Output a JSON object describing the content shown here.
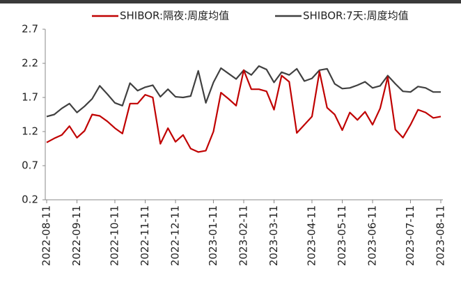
{
  "chart_data": {
    "type": "line",
    "categories": [
      "2022-08-11",
      null,
      null,
      null,
      "2022-09-11",
      null,
      null,
      null,
      null,
      "2022-10-11",
      null,
      null,
      null,
      "2022-11-11",
      null,
      null,
      null,
      "2022-12-11",
      null,
      null,
      null,
      null,
      "2023-01-11",
      null,
      null,
      null,
      "2023-02-11",
      null,
      null,
      null,
      "2023-03-11",
      null,
      null,
      null,
      null,
      "2023-04-11",
      null,
      null,
      null,
      "2023-05-11",
      null,
      null,
      null,
      "2023-06-11",
      null,
      null,
      null,
      null,
      "2023-07-11",
      null,
      null,
      null,
      "2023-08-11"
    ],
    "series": [
      {
        "name": "SHIBOR:隔夜:周度均值",
        "color": "#c00000",
        "values": [
          1.04,
          1.1,
          1.15,
          1.28,
          1.11,
          1.21,
          1.45,
          1.43,
          1.35,
          1.25,
          1.17,
          1.61,
          1.61,
          1.74,
          1.7,
          1.02,
          1.25,
          1.05,
          1.15,
          0.95,
          0.9,
          0.92,
          1.2,
          1.77,
          1.68,
          1.58,
          2.1,
          1.82,
          1.82,
          1.79,
          1.52,
          2.02,
          1.93,
          1.18,
          1.3,
          1.42,
          2.08,
          1.55,
          1.45,
          1.22,
          1.48,
          1.37,
          1.49,
          1.3,
          1.54,
          2.0,
          1.23,
          1.11,
          1.3,
          1.52,
          1.48,
          1.4,
          1.42
        ]
      },
      {
        "name": "SHIBOR:7天:周度均值",
        "color": "#404040",
        "values": [
          1.42,
          1.45,
          1.54,
          1.61,
          1.48,
          1.57,
          1.68,
          1.87,
          1.75,
          1.62,
          1.58,
          1.91,
          1.8,
          1.85,
          1.88,
          1.71,
          1.82,
          1.71,
          1.7,
          1.72,
          2.09,
          1.62,
          1.92,
          2.13,
          2.05,
          1.97,
          2.1,
          2.03,
          2.16,
          2.11,
          1.92,
          2.07,
          2.03,
          2.12,
          1.94,
          1.98,
          2.1,
          2.12,
          1.9,
          1.83,
          1.84,
          1.88,
          1.93,
          1.84,
          1.87,
          2.02,
          1.9,
          1.79,
          1.78,
          1.86,
          1.84,
          1.78,
          1.78
        ]
      }
    ],
    "ylim": [
      0.2,
      2.7
    ],
    "yticks": [
      0.2,
      0.7,
      1.2,
      1.7,
      2.2,
      2.7
    ],
    "grid": false,
    "legend": "top"
  }
}
